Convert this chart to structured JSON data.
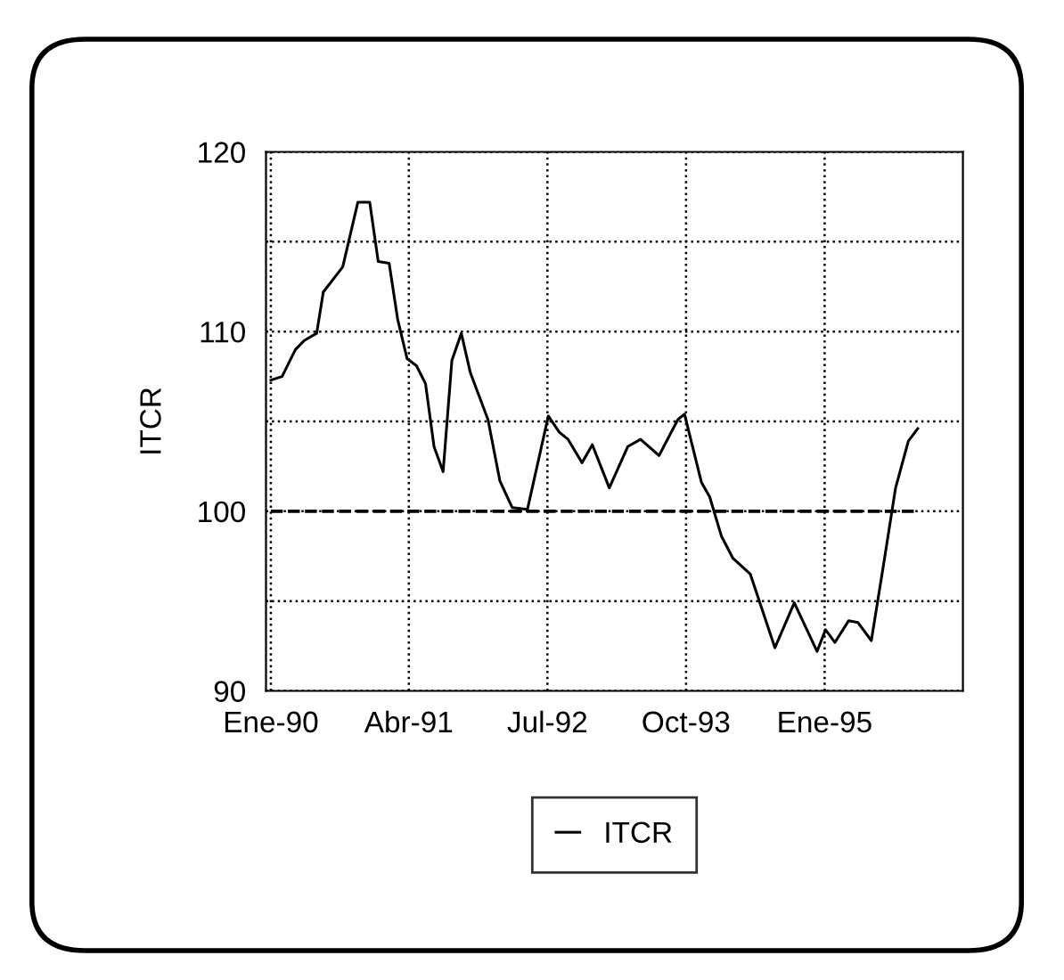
{
  "chart_data": {
    "type": "line",
    "ylabel": "ITCR",
    "x": [
      "1990-01-01",
      "1990-02-07",
      "1990-03-23",
      "1990-04-21",
      "1990-06-01",
      "1990-06-23",
      "1990-08-26",
      "1990-10-15",
      "1990-11-23",
      "1990-12-21",
      "1991-01-26",
      "1991-02-23",
      "1991-03-26",
      "1991-04-26",
      "1991-05-26",
      "1991-06-23",
      "1991-07-23",
      "1991-08-21",
      "1991-09-21",
      "1991-10-21",
      "1991-12-18",
      "1992-01-26",
      "1992-03-07",
      "1992-04-26",
      "1992-07-04",
      "1992-08-09",
      "1992-09-07",
      "1992-10-23",
      "1992-11-26",
      "1993-01-21",
      "1993-03-23",
      "1993-05-04",
      "1993-07-04",
      "1993-09-04",
      "1993-09-26",
      "1993-11-21",
      "1993-12-18",
      "1994-01-26",
      "1994-03-04",
      "1994-05-01",
      "1994-07-21",
      "1994-09-23",
      "1994-12-07",
      "1995-01-04",
      "1995-02-04",
      "1995-03-21",
      "1995-04-21",
      "1995-06-04",
      "1995-07-15",
      "1995-08-23",
      "1995-10-04",
      "1995-11-04"
    ],
    "series": [
      {
        "name": "ITCR",
        "color": "#000000",
        "values": [
          107.3,
          107.5,
          109.0,
          109.5,
          109.9,
          112.2,
          113.6,
          117.2,
          117.2,
          113.9,
          113.8,
          110.7,
          108.5,
          108.1,
          107.1,
          103.6,
          102.2,
          108.4,
          109.9,
          107.7,
          105.1,
          101.7,
          100.2,
          100.1,
          105.3,
          104.4,
          104.0,
          102.7,
          103.7,
          101.3,
          103.6,
          104.0,
          103.1,
          105.1,
          105.4,
          101.6,
          100.8,
          98.6,
          97.4,
          96.5,
          92.4,
          94.9,
          92.2,
          93.4,
          92.7,
          93.9,
          93.8,
          92.8,
          97.1,
          101.3,
          103.9,
          104.6
        ]
      }
    ],
    "xlim": [
      "1989-12-16",
      "1996-04-01"
    ],
    "xticks": [
      {
        "value": "1990-01",
        "label": "Ene-90"
      },
      {
        "value": "1991-04",
        "label": "Abr-91"
      },
      {
        "value": "1992-07",
        "label": "Jul-92"
      },
      {
        "value": "1993-10",
        "label": "Oct-93"
      },
      {
        "value": "1995-01",
        "label": "Ene-95"
      }
    ],
    "ylim": [
      90,
      120
    ],
    "yticks": [
      90,
      {
        "value": 95,
        "label": null
      },
      100,
      {
        "value": 105,
        "label": null
      },
      110,
      {
        "value": 115,
        "label": null
      },
      120
    ],
    "ref_lines": [
      {
        "axis": "y",
        "value": 100,
        "label": null,
        "color": "#000000",
        "line_style": "dashed"
      }
    ],
    "grid": true,
    "legend": "bottom",
    "line_style": "solid",
    "marker": "none"
  }
}
